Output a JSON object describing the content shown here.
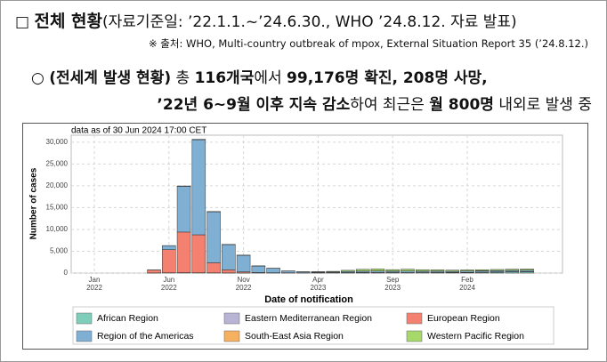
{
  "header": {
    "marker": "□",
    "title": "전체 현황",
    "note": "(자료기준일: ’22.1.1.~’24.6.30., WHO ’24.8.12. 자료 발표)",
    "source": "※ 출처: WHO, Multi-country outbreak of mpox, External Situation Report 35 (’24.8.12.)"
  },
  "summary": {
    "bullet": "○",
    "lines": [
      [
        {
          "text": "(전세계 발생 현황)",
          "bold": true
        },
        {
          "text": " 총 ",
          "bold": false
        },
        {
          "text": "116개국",
          "bold": true
        },
        {
          "text": "에서 ",
          "bold": false
        },
        {
          "text": "99,176명 확진, 208명 사망,",
          "bold": true
        }
      ],
      [
        {
          "text": "’22년 6~9월 이후 지속 감소",
          "bold": true
        },
        {
          "text": "하여 최근은 ",
          "bold": false
        },
        {
          "text": "월 800명",
          "bold": true
        },
        {
          "text": " 내외로 발생 중",
          "bold": false
        }
      ]
    ]
  },
  "chart_data": {
    "type": "bar",
    "stacked": true,
    "annotation": "data as of 30 Jun 2024 17:00 CET",
    "x_label": "Date of notification",
    "y_label": "Number of cases",
    "categories": [
      [
        "Jan",
        "2022"
      ],
      null,
      null,
      null,
      null,
      [
        "Jun",
        "2022"
      ],
      null,
      null,
      null,
      null,
      [
        "Nov",
        "2022"
      ],
      null,
      null,
      null,
      null,
      [
        "Apr",
        "2023"
      ],
      null,
      null,
      null,
      null,
      [
        "Sep",
        "2023"
      ],
      null,
      null,
      null,
      null,
      [
        "Feb",
        "2024"
      ],
      null,
      null,
      null,
      null
    ],
    "series": [
      {
        "name": "African Region",
        "color": "#7fcdbb",
        "values": [
          0,
          0,
          0,
          0,
          20,
          60,
          80,
          60,
          40,
          30,
          20,
          20,
          20,
          20,
          20,
          20,
          30,
          30,
          30,
          40,
          50,
          60,
          60,
          80,
          100,
          100,
          150,
          200,
          250,
          300
        ]
      },
      {
        "name": "Eastern Mediterranean Region",
        "color": "#b8b4d6",
        "values": [
          0,
          0,
          0,
          0,
          5,
          10,
          15,
          10,
          5,
          5,
          5,
          0,
          0,
          0,
          0,
          0,
          0,
          0,
          0,
          0,
          0,
          0,
          0,
          0,
          0,
          0,
          0,
          0,
          0,
          0
        ]
      },
      {
        "name": "European Region",
        "color": "#f4806f",
        "values": [
          0,
          0,
          0,
          0,
          650,
          5300,
          9300,
          8700,
          2300,
          700,
          250,
          100,
          60,
          40,
          30,
          30,
          40,
          80,
          100,
          80,
          60,
          50,
          40,
          40,
          40,
          50,
          50,
          50,
          50,
          50
        ]
      },
      {
        "name": "Region of the Americas",
        "color": "#80afd4",
        "values": [
          0,
          0,
          0,
          0,
          50,
          900,
          10500,
          21800,
          11700,
          5800,
          3800,
          1500,
          1000,
          400,
          200,
          150,
          150,
          250,
          300,
          350,
          300,
          350,
          300,
          300,
          250,
          300,
          300,
          300,
          300,
          300
        ]
      },
      {
        "name": "South-East Asia Region",
        "color": "#f5b060",
        "values": [
          0,
          0,
          0,
          0,
          0,
          5,
          10,
          20,
          20,
          10,
          10,
          10,
          10,
          10,
          10,
          20,
          20,
          20,
          20,
          20,
          20,
          20,
          20,
          20,
          20,
          20,
          20,
          20,
          20,
          20
        ]
      },
      {
        "name": "Western Pacific Region",
        "color": "#a6d96a",
        "values": [
          0,
          0,
          0,
          0,
          0,
          20,
          60,
          60,
          40,
          30,
          20,
          20,
          10,
          20,
          50,
          100,
          150,
          250,
          400,
          450,
          350,
          400,
          350,
          300,
          250,
          250,
          250,
          250,
          250,
          250
        ]
      }
    ],
    "ylim": [
      0,
      31600
    ],
    "yticks": [
      0,
      {
        "value": 5000,
        "label": "5,000"
      },
      {
        "value": 10000,
        "label": "10,000"
      },
      {
        "value": 15000,
        "label": "15,000"
      },
      {
        "value": 20000,
        "label": "20,000"
      },
      {
        "value": 25000,
        "label": "25,000"
      },
      {
        "value": 30000,
        "label": "30,000"
      }
    ],
    "grid": true
  }
}
